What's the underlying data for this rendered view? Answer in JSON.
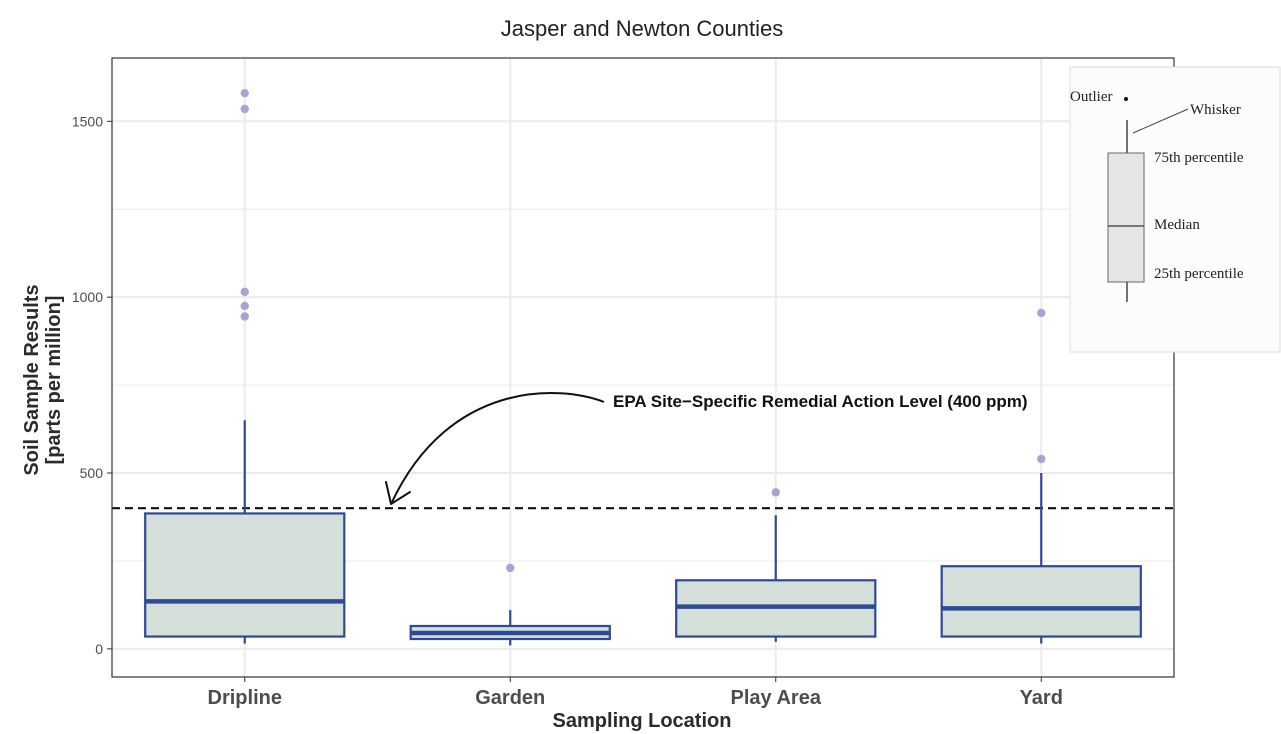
{
  "chart_data": {
    "type": "box",
    "title": "Jasper and Newton Counties",
    "xlabel": "Sampling Location",
    "ylabel_lines": [
      "Soil Sample Results",
      "[parts per million]"
    ],
    "ylim": [
      -80,
      1680
    ],
    "yticks": [
      0,
      500,
      1000,
      1500
    ],
    "ytick_labels": [
      "0",
      "500",
      "1000",
      "1500"
    ],
    "grid": true,
    "categories": [
      "Dripline",
      "Garden",
      "Play Area",
      "Yard"
    ],
    "boxes": [
      {
        "category": "Dripline",
        "whisker_low": 15,
        "q1": 35,
        "median": 135,
        "q3": 385,
        "whisker_high": 650,
        "outliers": [
          945,
          975,
          1015,
          1535,
          1580
        ]
      },
      {
        "category": "Garden",
        "whisker_low": 10,
        "q1": 28,
        "median": 45,
        "q3": 65,
        "whisker_high": 110,
        "outliers": [
          230
        ]
      },
      {
        "category": "Play Area",
        "whisker_low": 20,
        "q1": 35,
        "median": 120,
        "q3": 195,
        "whisker_high": 380,
        "outliers": [
          445
        ]
      },
      {
        "category": "Yard",
        "whisker_low": 15,
        "q1": 35,
        "median": 115,
        "q3": 235,
        "whisker_high": 500,
        "outliers": [
          540,
          955
        ]
      }
    ],
    "reference_line": {
      "y": 400,
      "style": "dashed"
    },
    "annotation": {
      "text": "EPA Site−Specific Remedial Action Level (400 ppm)"
    },
    "legend": {
      "labels": {
        "outlier": "Outlier",
        "whisker": "Whisker",
        "p75": "75th percentile",
        "median": "Median",
        "p25": "25th percentile"
      }
    },
    "colors": {
      "box_fill": "#d4dfd9",
      "box_stroke": "#2e4a96",
      "outlier": "#a5a4d2",
      "panel_border": "#333333",
      "grid": "#ebebeb"
    }
  }
}
